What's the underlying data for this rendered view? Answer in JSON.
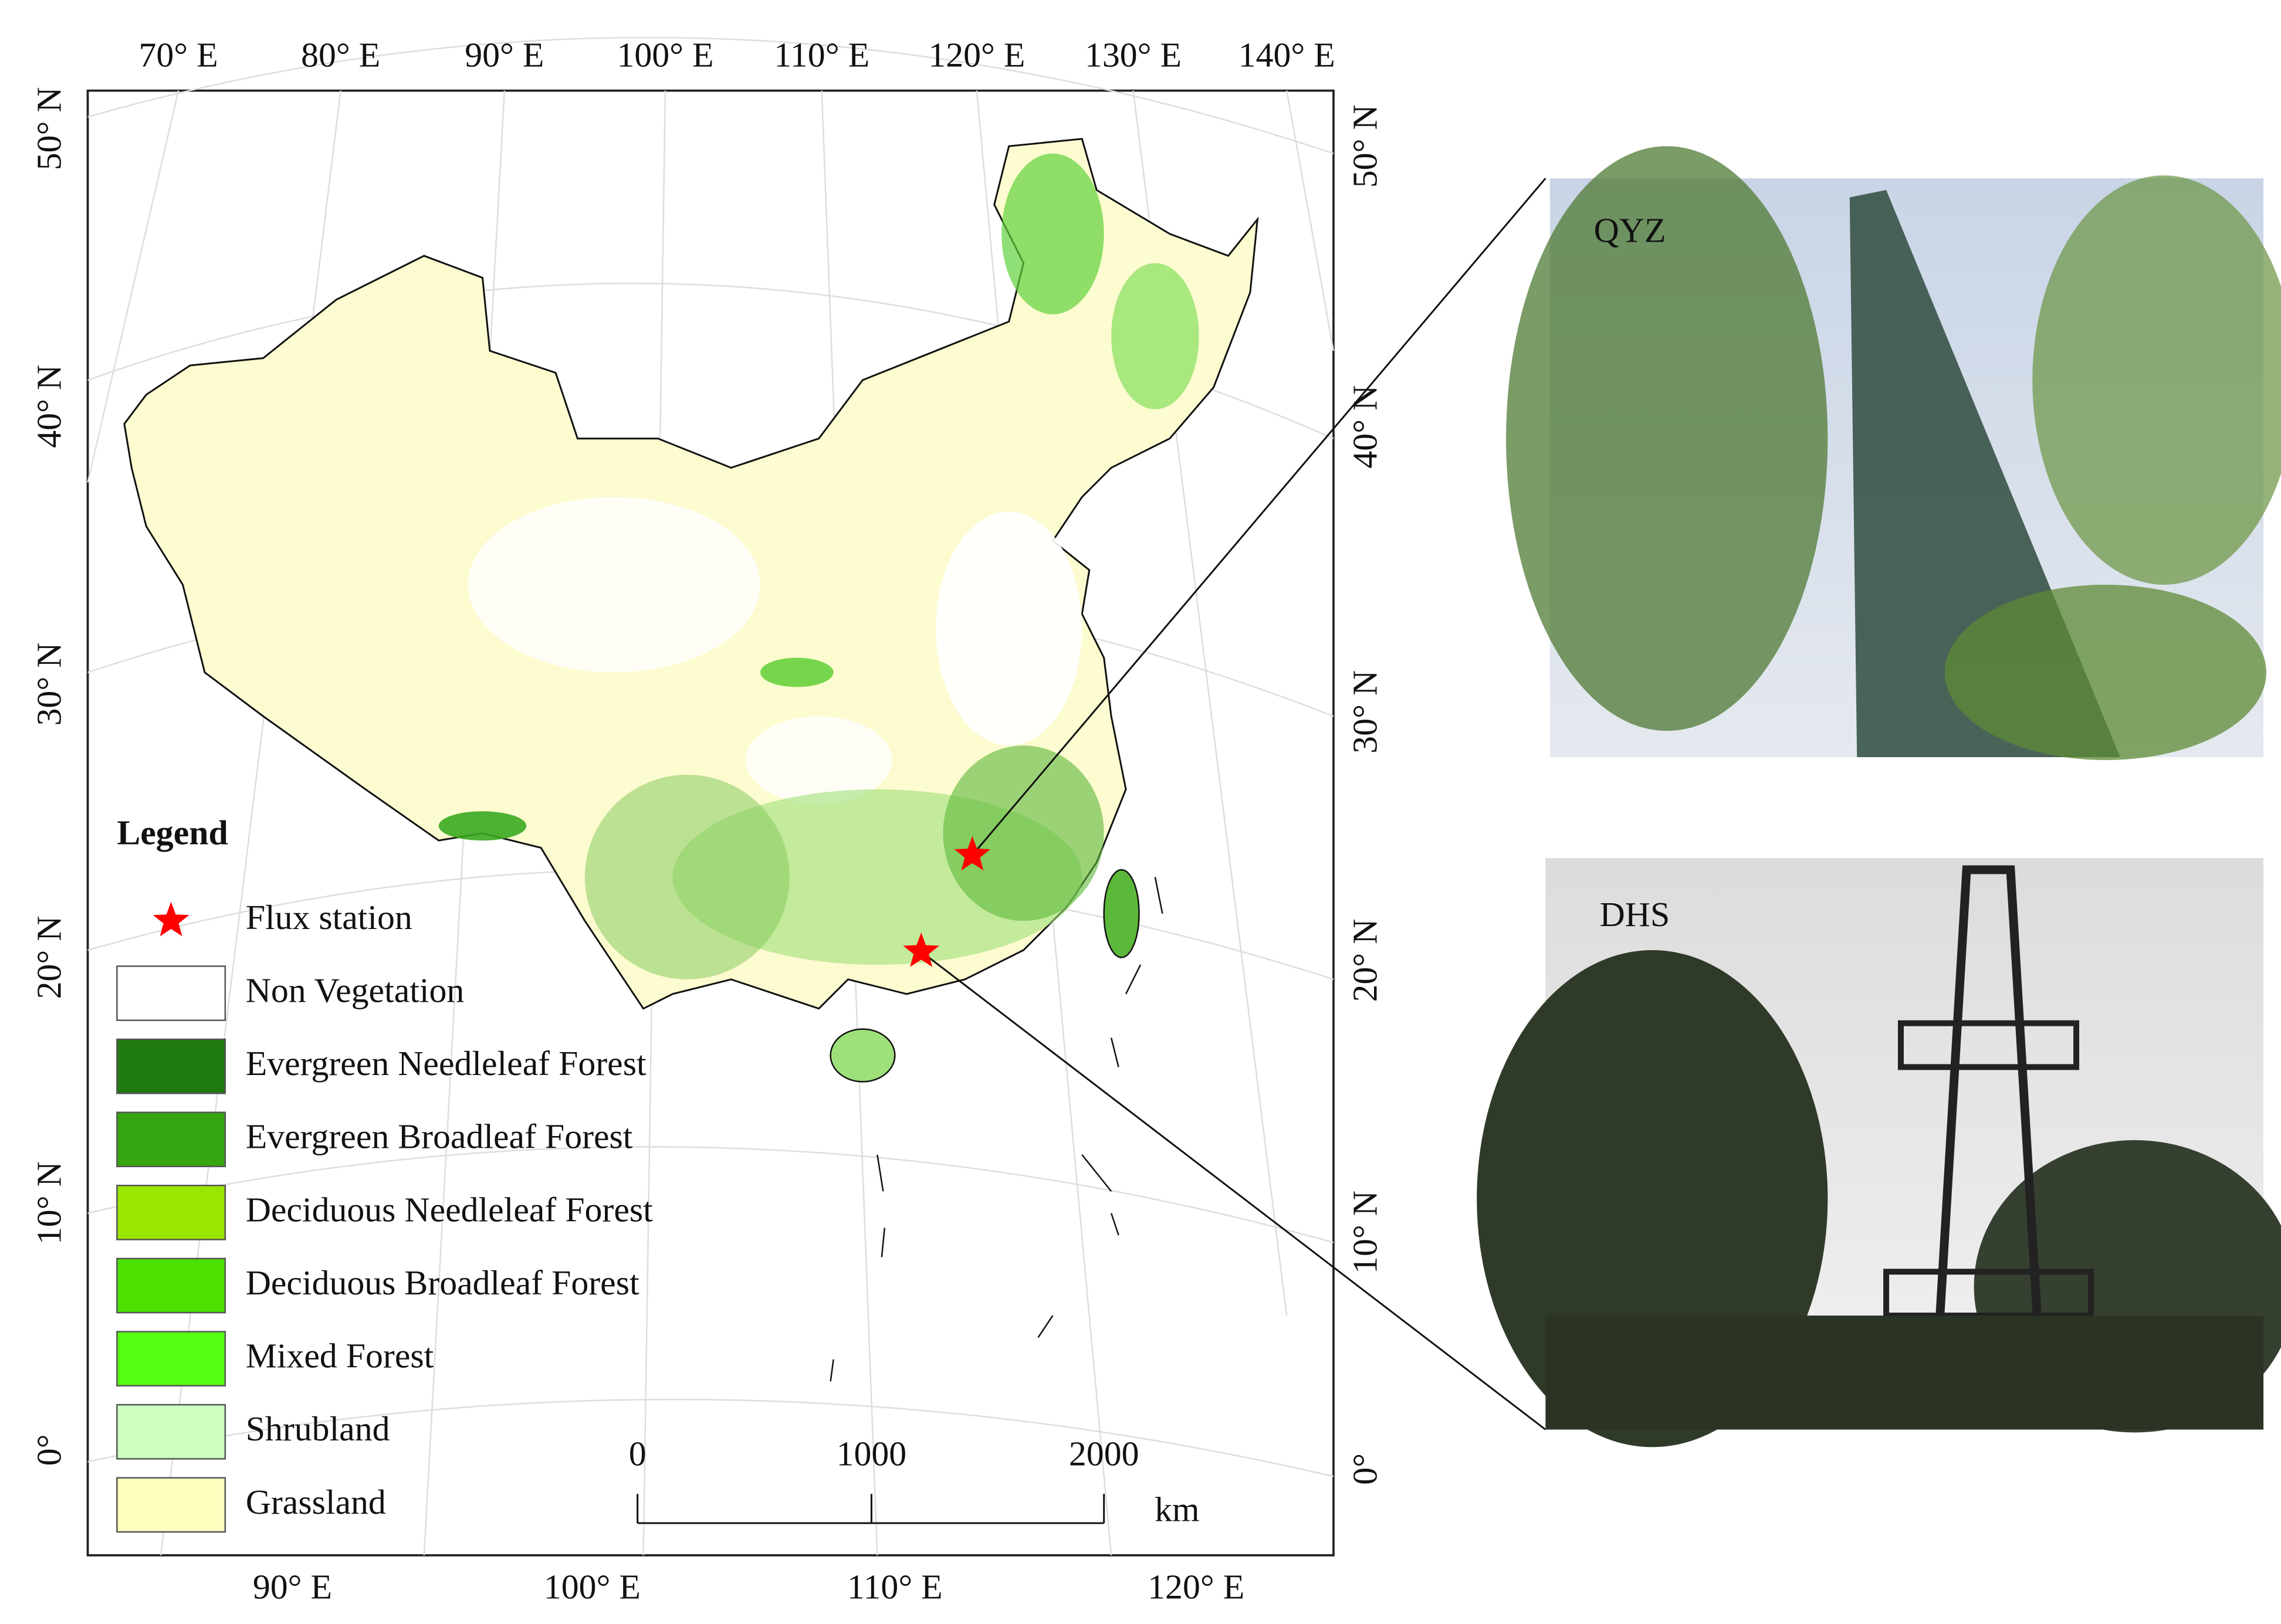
{
  "map": {
    "top_lon_labels": [
      "70° E",
      "80° E",
      "90° E",
      "100° E",
      "110° E",
      "120° E",
      "130° E",
      "140° E"
    ],
    "bottom_lon_labels": [
      "90° E",
      "100° E",
      "110° E",
      "120° E"
    ],
    "left_lat_labels": [
      "50° N",
      "40° N",
      "30° N",
      "20° N",
      "10° N",
      "0°"
    ],
    "right_lat_labels": [
      "50° N",
      "40° N",
      "30° N",
      "20° N",
      "10° N",
      "0°"
    ],
    "legend": {
      "title": "Legend",
      "items": [
        {
          "label": "Flux station",
          "color": "#ff0000"
        },
        {
          "label": "Non Vegetation",
          "color": "#ffffff"
        },
        {
          "label": "Evergreen Needleleaf Forest",
          "color": "#1f7a0f"
        },
        {
          "label": "Evergreen Broadleaf Forest",
          "color": "#35a611"
        },
        {
          "label": "Deciduous Needleleaf Forest",
          "color": "#99e600"
        },
        {
          "label": "Deciduous Broadleaf Forest",
          "color": "#4ddf00"
        },
        {
          "label": "Mixed Forest",
          "color": "#55ff11"
        },
        {
          "label": "Shrubland",
          "color": "#ccffc0"
        },
        {
          "label": "Grassland",
          "color": "#ffffc0"
        }
      ]
    },
    "scale_bar": {
      "ticks": [
        0,
        1000,
        2000
      ],
      "unit": "km"
    }
  },
  "photos": [
    {
      "label": "QYZ",
      "color": "#ff0000"
    },
    {
      "label": "DHS",
      "color": "#ff0000"
    }
  ]
}
